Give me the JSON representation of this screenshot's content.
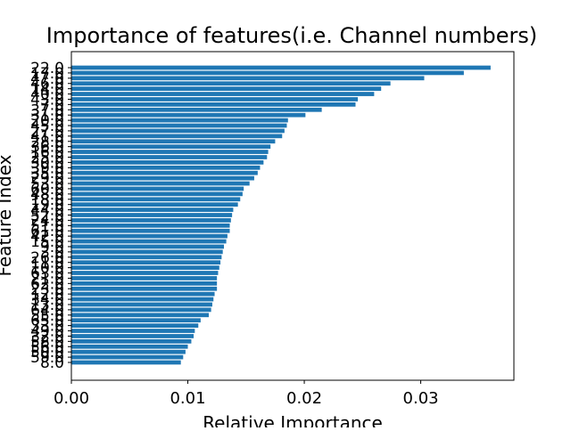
{
  "chart_data": {
    "type": "bar",
    "orientation": "horizontal",
    "title": "Importance of features(i.e. Channel numbers)",
    "xlabel": "Relative Importance",
    "ylabel": "Feature Index",
    "xlim": [
      0,
      0.038
    ],
    "xticks": [
      0.0,
      0.01,
      0.02,
      0.03
    ],
    "xtick_labels": [
      "0.00",
      "0.01",
      "0.02",
      "0.03"
    ],
    "grid": false,
    "bar_color": "#1f77b4",
    "categories": [
      "22.0",
      "17.0",
      "47.0",
      "46.0",
      "14.0",
      "40.0",
      "43.0",
      "7.0",
      "37.0",
      "31.0",
      "20.0",
      "45.0",
      "27.0",
      "41.0",
      "28.0",
      "36.0",
      "16.0",
      "25.0",
      "30.0",
      "39.0",
      "35.0",
      "29.0",
      "53.0",
      "60.0",
      "48.0",
      "18.0",
      "19.0",
      "44.0",
      "52.0",
      "24.0",
      "51.0",
      "61.0",
      "42.0",
      "15.0",
      "9.0",
      "3.0",
      "26.0",
      "11.0",
      "10.0",
      "63.0",
      "21.0",
      "62.0",
      "23.0",
      "12.0",
      "34.0",
      "13.0",
      "64.0",
      "55.0",
      "65.0",
      "33.0",
      "49.0",
      "32.0",
      "58.0",
      "56.0",
      "50.0",
      "59.0",
      "8.0"
    ],
    "values": [
      0.036,
      0.0337,
      0.0303,
      0.0274,
      0.0266,
      0.026,
      0.0246,
      0.0244,
      0.0215,
      0.0201,
      0.0186,
      0.0185,
      0.0183,
      0.0181,
      0.0175,
      0.0171,
      0.0169,
      0.0168,
      0.0165,
      0.0162,
      0.016,
      0.0157,
      0.0153,
      0.0148,
      0.0147,
      0.0145,
      0.0143,
      0.0139,
      0.0138,
      0.0137,
      0.0136,
      0.0136,
      0.0134,
      0.0133,
      0.0131,
      0.013,
      0.0129,
      0.0128,
      0.0127,
      0.0126,
      0.0125,
      0.0125,
      0.0125,
      0.0123,
      0.0122,
      0.0121,
      0.012,
      0.0118,
      0.0111,
      0.0109,
      0.0106,
      0.0105,
      0.0103,
      0.01,
      0.0098,
      0.0096,
      0.0094
    ]
  }
}
